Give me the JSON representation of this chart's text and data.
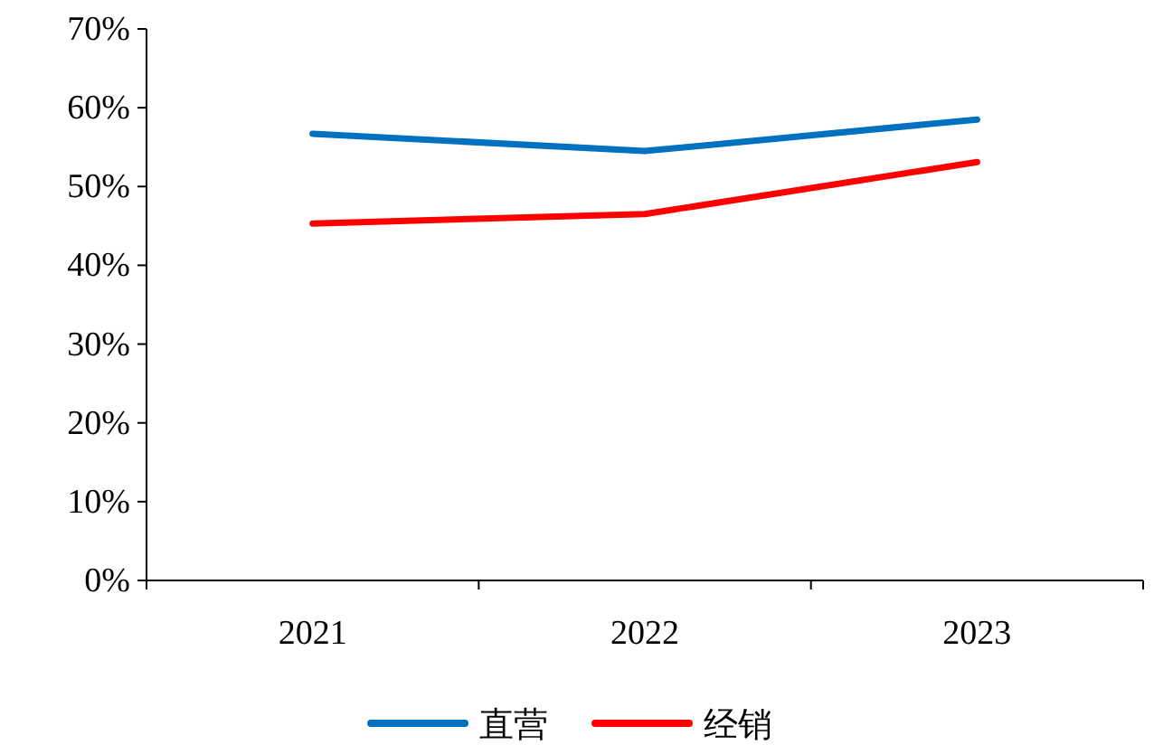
{
  "chart_data": {
    "type": "line",
    "categories": [
      "2021",
      "2022",
      "2023"
    ],
    "series": [
      {
        "name": "直营",
        "color": "#0070c0",
        "values": [
          56.7,
          54.5,
          58.5
        ]
      },
      {
        "name": "经销",
        "color": "#ff0000",
        "values": [
          45.3,
          46.5,
          53.1
        ]
      }
    ],
    "ylim": [
      0,
      70
    ],
    "yticks": [
      {
        "value": 0,
        "label": "0%"
      },
      {
        "value": 10,
        "label": "10%"
      },
      {
        "value": 20,
        "label": "20%"
      },
      {
        "value": 30,
        "label": "30%"
      },
      {
        "value": 40,
        "label": "40%"
      },
      {
        "value": 50,
        "label": "50%"
      },
      {
        "value": 60,
        "label": "60%"
      },
      {
        "value": 70,
        "label": "70%"
      }
    ],
    "grid": false,
    "legend": "bottom",
    "marker": "none",
    "line_style": "solid"
  }
}
